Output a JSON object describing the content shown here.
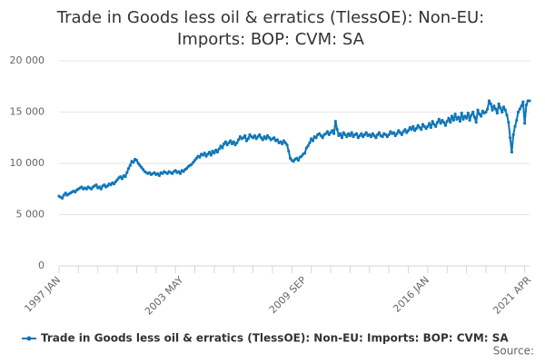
{
  "chart_data": {
    "type": "line",
    "title": [
      "Trade in Goods less oil & erratics (TlessOE): Non-EU:",
      "Imports: BOP: CVM: SA"
    ],
    "source": "Source:",
    "categories": [
      "1997 JAN",
      null,
      null,
      null,
      null,
      null,
      null,
      null,
      null,
      null,
      null,
      null,
      null,
      null,
      null,
      null,
      null,
      null,
      null,
      null,
      null,
      null,
      null,
      null,
      null,
      null,
      null,
      null,
      null,
      null,
      null,
      null,
      null,
      null,
      null,
      null,
      null,
      null,
      null,
      null,
      null,
      null,
      null,
      null,
      null,
      null,
      null,
      null,
      null,
      null,
      null,
      null,
      null,
      null,
      null,
      null,
      null,
      null,
      null,
      null,
      null,
      null,
      null,
      null,
      null,
      null,
      null,
      null,
      null,
      null,
      null,
      null,
      null,
      null,
      null,
      null,
      "2003 MAY",
      null,
      null,
      null,
      null,
      null,
      null,
      null,
      null,
      null,
      null,
      null,
      null,
      null,
      null,
      null,
      null,
      null,
      null,
      null,
      null,
      null,
      null,
      null,
      null,
      null,
      null,
      null,
      null,
      null,
      null,
      null,
      null,
      null,
      null,
      null,
      null,
      null,
      null,
      null,
      null,
      null,
      null,
      null,
      null,
      null,
      null,
      null,
      null,
      null,
      null,
      null,
      null,
      null,
      null,
      null,
      null,
      null,
      null,
      null,
      null,
      null,
      null,
      null,
      null,
      null,
      null,
      null,
      null,
      null,
      null,
      null,
      null,
      null,
      null,
      null,
      "2009 SEP",
      null,
      null,
      null,
      null,
      null,
      null,
      null,
      null,
      null,
      null,
      null,
      null,
      null,
      null,
      null,
      null,
      null,
      null,
      null,
      null,
      null,
      null,
      null,
      null,
      null,
      null,
      null,
      null,
      null,
      null,
      null,
      null,
      null,
      null,
      null,
      null,
      null,
      null,
      null,
      null,
      null,
      null,
      null,
      null,
      null,
      null,
      null,
      null,
      null,
      null,
      null,
      null,
      null,
      null,
      null,
      null,
      null,
      null,
      null,
      null,
      null,
      null,
      null,
      null,
      null,
      null,
      null,
      null,
      null,
      null,
      null,
      null,
      null,
      null,
      null,
      "2016 JAN",
      null,
      null,
      null,
      null,
      null,
      null,
      null,
      null,
      null,
      null,
      null,
      null,
      null,
      null,
      null,
      null,
      null,
      null,
      null,
      null,
      null,
      null,
      null,
      null,
      null,
      null,
      null,
      null,
      null,
      null,
      null,
      null,
      null,
      null,
      null,
      null,
      null,
      null,
      null,
      null,
      null,
      null,
      null,
      null,
      null,
      null,
      null,
      null,
      null,
      null,
      null,
      null,
      null,
      null,
      null,
      null,
      null,
      null,
      null,
      null,
      null,
      null,
      "2021 APR"
    ],
    "series": [
      {
        "name": "Trade in Goods less oil & erratics (TlessOE): Non-EU: Imports: BOP: CVM: SA",
        "color": "#0f76b8",
        "values": [
          6800,
          6700,
          6600,
          6900,
          7100,
          6900,
          7000,
          7100,
          7200,
          7300,
          7200,
          7400,
          7500,
          7600,
          7700,
          7500,
          7600,
          7500,
          7700,
          7600,
          7500,
          7700,
          7800,
          7900,
          7600,
          7700,
          7500,
          7800,
          7900,
          7700,
          7800,
          8000,
          7900,
          8100,
          8000,
          8200,
          8400,
          8600,
          8700,
          8500,
          8800,
          8700,
          9100,
          9500,
          9800,
          10200,
          10100,
          10400,
          10300,
          10000,
          9800,
          9600,
          9400,
          9200,
          9100,
          9000,
          9100,
          8900,
          9000,
          9100,
          8900,
          9000,
          8800,
          9100,
          9000,
          9200,
          9100,
          9000,
          9200,
          9100,
          9000,
          9200,
          9300,
          9100,
          9200,
          9000,
          9300,
          9200,
          9400,
          9500,
          9700,
          9800,
          9900,
          10100,
          10300,
          10500,
          10700,
          10600,
          10900,
          10800,
          11000,
          10700,
          10900,
          11100,
          10800,
          11200,
          11000,
          11300,
          11100,
          11400,
          11700,
          11500,
          11900,
          12100,
          11800,
          12000,
          12200,
          11900,
          12100,
          11800,
          12000,
          12300,
          12600,
          12400,
          12500,
          12700,
          12200,
          12400,
          12800,
          12600,
          12500,
          12700,
          12400,
          12600,
          12800,
          12500,
          12300,
          12600,
          12400,
          12700,
          12500,
          12300,
          12400,
          12500,
          12200,
          12300,
          12000,
          12100,
          11900,
          12200,
          12000,
          11800,
          11200,
          10500,
          10300,
          10200,
          10400,
          10500,
          10300,
          10600,
          10700,
          10900,
          11000,
          11500,
          11700,
          12000,
          12400,
          12200,
          12600,
          12500,
          12800,
          12900,
          12700,
          12500,
          12800,
          12900,
          13100,
          12800,
          13000,
          13200,
          12900,
          14100,
          13300,
          12700,
          12900,
          12500,
          13000,
          12800,
          12600,
          12900,
          12700,
          13000,
          12600,
          12800,
          12900,
          12500,
          12700,
          12900,
          12600,
          12800,
          13000,
          12700,
          12800,
          12600,
          12900,
          12700,
          12500,
          12800,
          13000,
          12700,
          12600,
          12900,
          12800,
          12600,
          12800,
          13100,
          12900,
          13000,
          12700,
          12900,
          13200,
          13000,
          12800,
          13100,
          13300,
          13000,
          13200,
          13500,
          13300,
          13600,
          13200,
          13400,
          13700,
          13500,
          13300,
          13800,
          13600,
          13400,
          13600,
          13900,
          13500,
          14100,
          13800,
          13600,
          14000,
          14300,
          13900,
          14200,
          14000,
          13700,
          14100,
          14400,
          14000,
          14600,
          14200,
          14800,
          14300,
          14500,
          14100,
          14900,
          14300,
          14600,
          14400,
          14900,
          14200,
          14700,
          15000,
          14500,
          14000,
          15200,
          14800,
          14600,
          15100,
          14900,
          15000,
          15300,
          16100,
          15800,
          15200,
          15600,
          15300,
          14900,
          15800,
          15400,
          15000,
          15500,
          15200,
          14700,
          14000,
          12500,
          11100,
          12800,
          13600,
          14200,
          15000,
          15300,
          15600,
          16000,
          13900,
          15700,
          16100,
          16100
        ]
      }
    ],
    "ylim": [
      0,
      20000
    ],
    "yticks": [
      0,
      {
        "value": 5000,
        "label": "5 000"
      },
      {
        "value": 10000,
        "label": "10 000"
      },
      {
        "value": 15000,
        "label": "15 000"
      },
      {
        "value": 20000,
        "label": "20 000"
      }
    ],
    "grid": true
  }
}
